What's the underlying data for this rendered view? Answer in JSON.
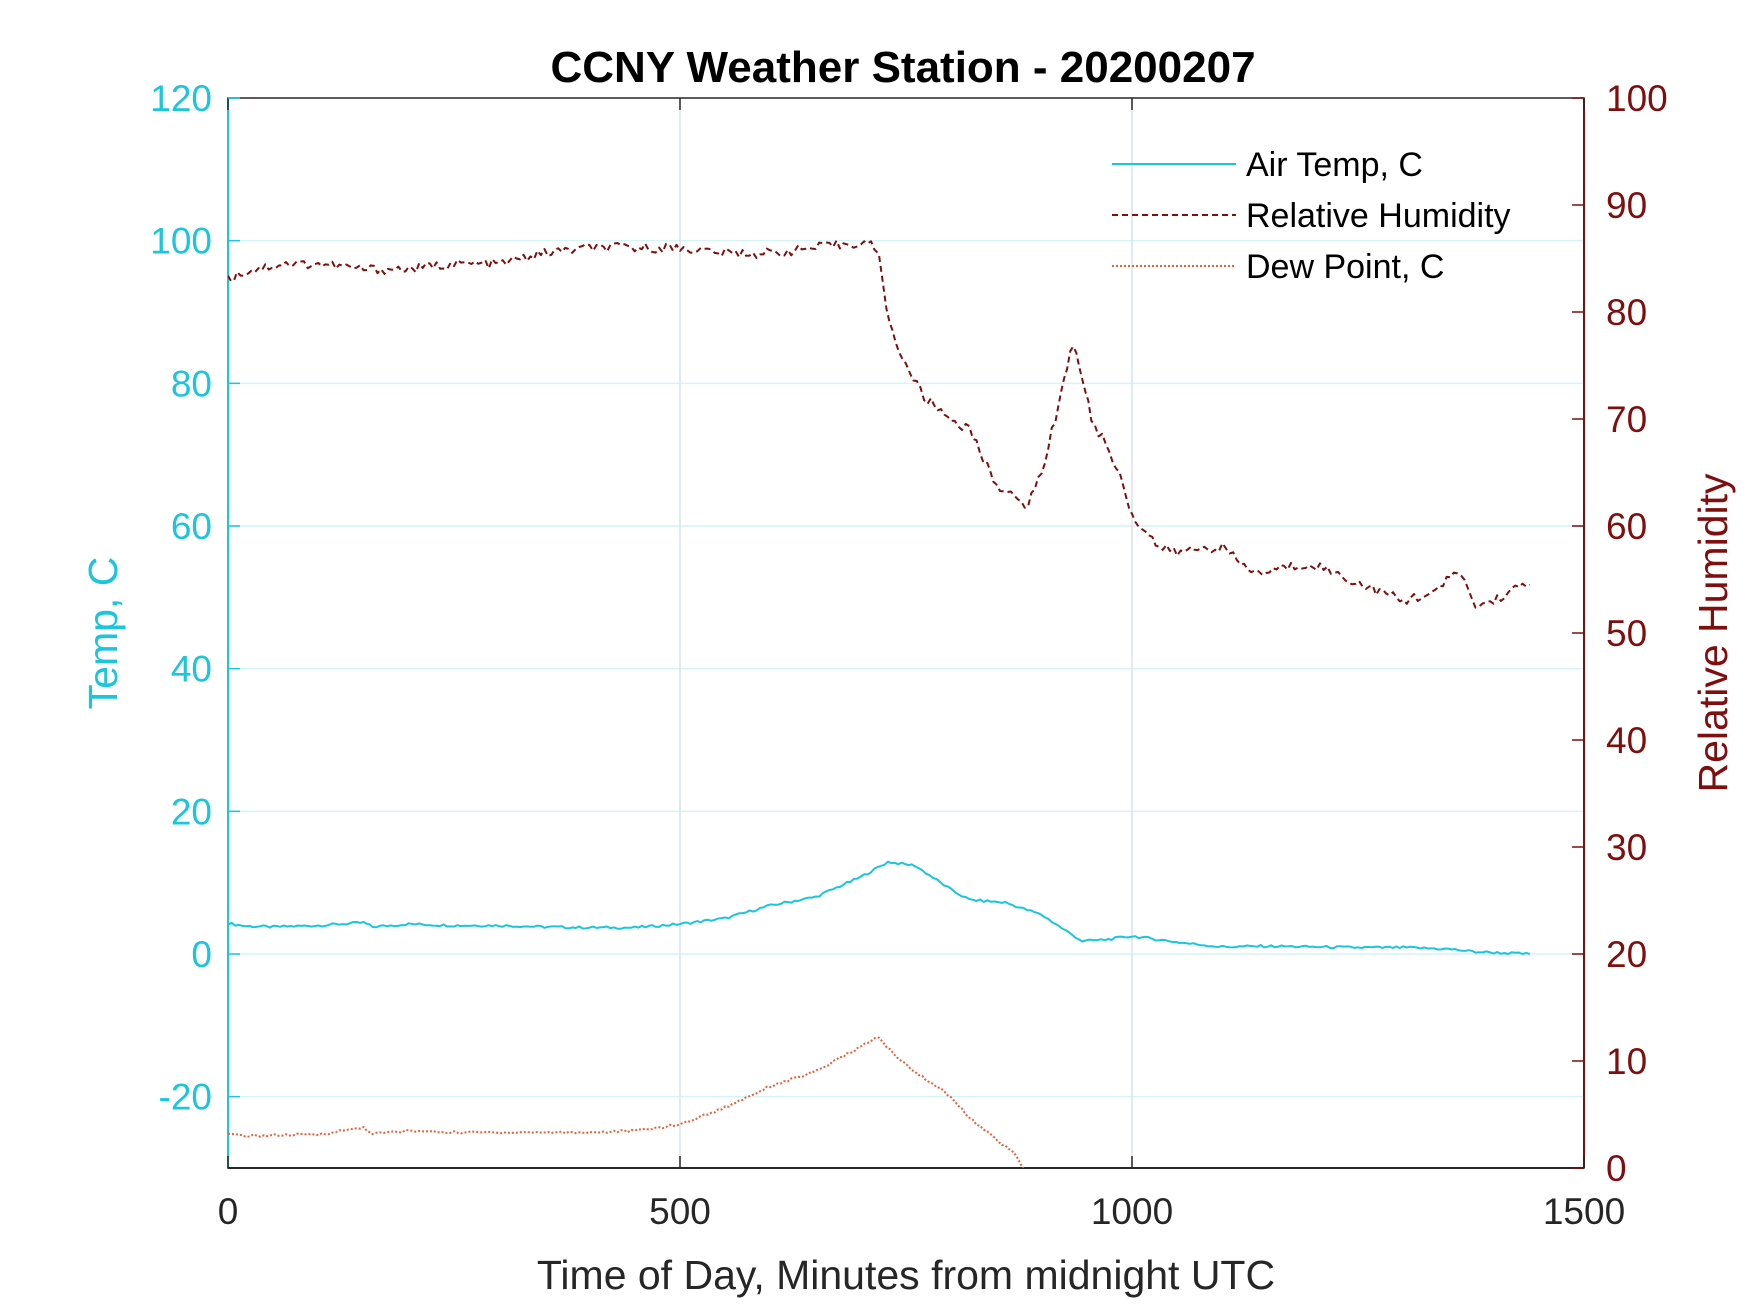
{
  "colors": {
    "air_temp": "#1BC5DC",
    "relative_humidity": "#7F0E0E",
    "dew_point": "#E0633A",
    "grid": "#D9E3EA",
    "left_axis": "#1BC5DC",
    "right_axis": "#7F0E0E",
    "bottom_axis": "#262626"
  },
  "chart_data": {
    "type": "line",
    "title": "CCNY Weather Station - 20200207",
    "xlabel": "Time of Day, Minutes from midnight UTC",
    "ylabel_left": "Temp, C",
    "ylabel_right": "Relative Humidity",
    "xlim": [
      0,
      1500
    ],
    "ylim_left": [
      -30,
      120
    ],
    "ylim_right": [
      0,
      100
    ],
    "xticks": [
      0,
      500,
      1000,
      1500
    ],
    "yticks_left": [
      -20,
      0,
      20,
      40,
      60,
      80,
      100,
      120
    ],
    "yticks_right": [
      0,
      10,
      20,
      30,
      40,
      50,
      60,
      70,
      80,
      90,
      100
    ],
    "grid": true,
    "legend_position": "top-right",
    "series": [
      {
        "name": "Air Temp, C",
        "axis": "left",
        "style": "solid",
        "x": [
          0,
          20,
          50,
          100,
          150,
          160,
          200,
          250,
          300,
          350,
          400,
          450,
          500,
          550,
          600,
          650,
          700,
          730,
          760,
          800,
          820,
          860,
          900,
          930,
          945,
          970,
          1000,
          1030,
          1060,
          1100,
          1150,
          1200,
          1250,
          1300,
          1350,
          1380,
          1440
        ],
        "values": [
          4.3,
          3.9,
          3.8,
          4.0,
          4.4,
          3.8,
          4.2,
          4.0,
          4.0,
          3.8,
          3.7,
          3.7,
          4.2,
          5.0,
          6.8,
          8.0,
          10.8,
          12.9,
          12.4,
          9.0,
          7.6,
          7.2,
          5.5,
          3.0,
          1.8,
          2.0,
          2.5,
          2.0,
          1.5,
          1.0,
          1.1,
          1.0,
          0.9,
          0.9,
          0.7,
          0.3,
          0.0
        ]
      },
      {
        "name": "Relative Humidity",
        "axis": "right",
        "style": "dashed",
        "x": [
          0,
          10,
          30,
          60,
          100,
          150,
          200,
          250,
          300,
          350,
          400,
          450,
          500,
          550,
          600,
          650,
          700,
          715,
          720,
          725,
          735,
          750,
          770,
          800,
          820,
          840,
          850,
          870,
          885,
          900,
          915,
          925,
          935,
          945,
          955,
          975,
          990,
          1000,
          1015,
          1030,
          1050,
          1080,
          1100,
          1120,
          1140,
          1160,
          1200,
          1240,
          1270,
          1300,
          1320,
          1340,
          1360,
          1380,
          1400,
          1420,
          1440
        ],
        "values": [
          83,
          83.5,
          84,
          84.5,
          84.5,
          84,
          84,
          84.5,
          84.5,
          85.5,
          86,
          86,
          86,
          85.5,
          85.5,
          86,
          86.5,
          86.2,
          85,
          82,
          78,
          75,
          72,
          70,
          69,
          65.5,
          64,
          62.5,
          62,
          65,
          70,
          74,
          77,
          74,
          70,
          67,
          64,
          61,
          59.5,
          58,
          57.5,
          58,
          58,
          56.5,
          55.5,
          56,
          56.5,
          55,
          54,
          53,
          53.5,
          54,
          56,
          52.5,
          53,
          54,
          54.5
        ]
      },
      {
        "name": "Dew Point, C",
        "axis": "left",
        "style": "dotted",
        "x": [
          0,
          20,
          60,
          100,
          150,
          160,
          200,
          250,
          300,
          350,
          400,
          450,
          500,
          550,
          600,
          650,
          700,
          720,
          725,
          740,
          760,
          800,
          820,
          840,
          860,
          870,
          880
        ],
        "values": [
          -25.3,
          -25.5,
          -25.4,
          -25.3,
          -24.3,
          -25.2,
          -24.8,
          -25.0,
          -25.0,
          -25.0,
          -25.0,
          -24.8,
          -23.9,
          -21.5,
          -18.5,
          -16.5,
          -13.0,
          -11.6,
          -12.5,
          -14.5,
          -16.5,
          -20.0,
          -23.0,
          -25.0,
          -27.0,
          -28.0,
          -30.0
        ]
      }
    ]
  }
}
